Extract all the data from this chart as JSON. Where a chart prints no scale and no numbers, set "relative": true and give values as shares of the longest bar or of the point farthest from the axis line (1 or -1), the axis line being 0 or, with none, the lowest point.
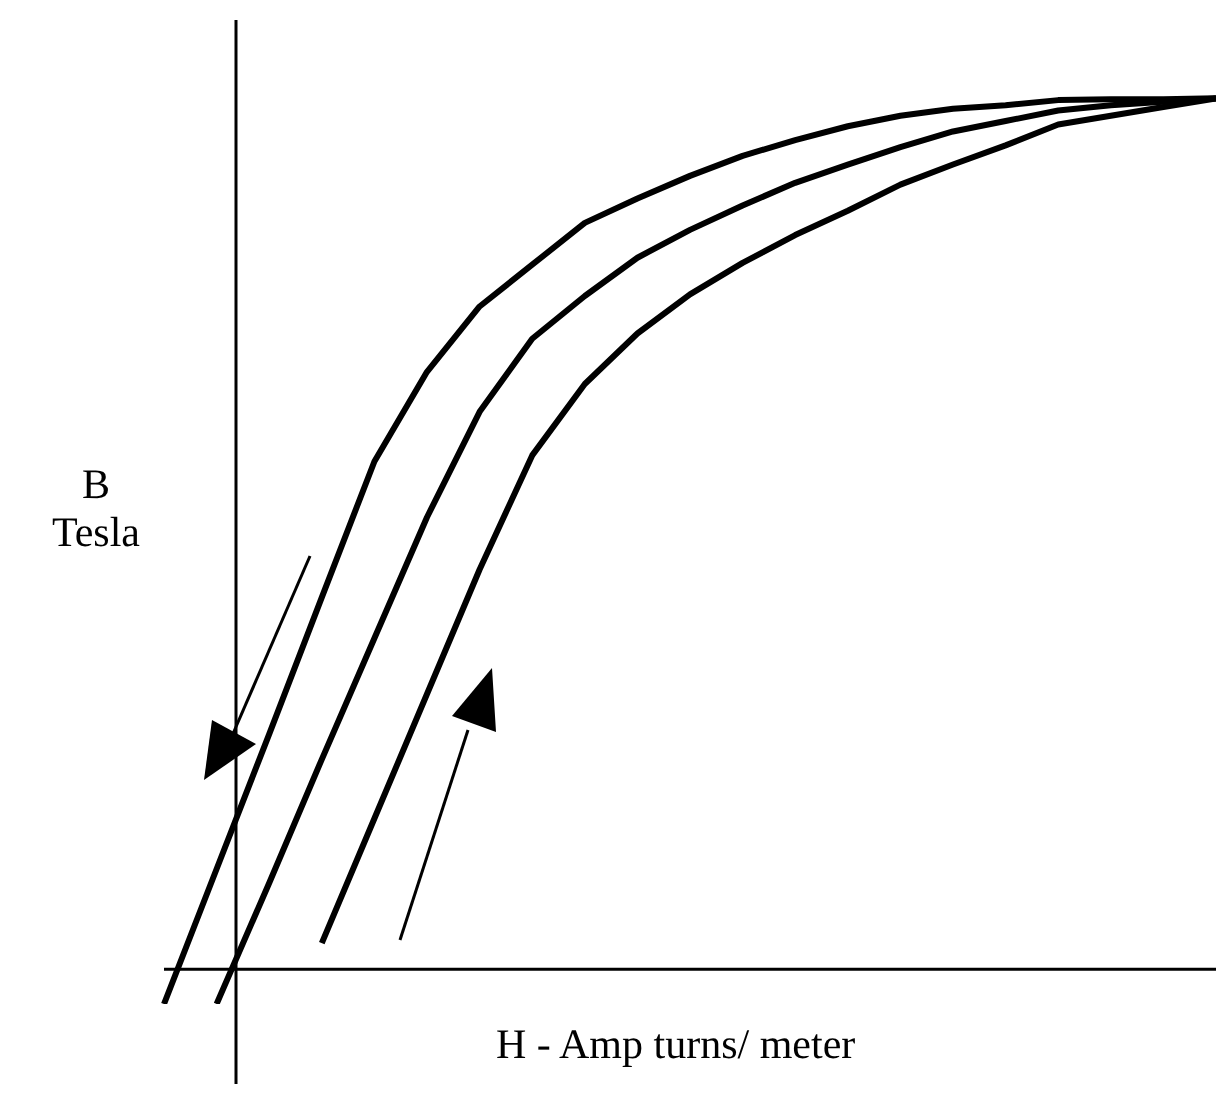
{
  "chart_data": {
    "type": "line",
    "relative": true,
    "xlabel": "H - Amp turns/ meter",
    "ylabel": "B\nTesla",
    "marker": "none",
    "categories": [
      null,
      null,
      null,
      null,
      null,
      null,
      null,
      null,
      null,
      null,
      null,
      null,
      null,
      null,
      null,
      null,
      null,
      null,
      null,
      null,
      null
    ],
    "series": [
      {
        "color": "#000000",
        "values": [
          -0.04,
          0.115,
          0.27,
          0.427,
          0.583,
          0.686,
          0.761,
          0.809,
          0.857,
          0.885,
          0.911,
          0.934,
          0.952,
          0.968,
          0.98,
          0.988,
          0.992,
          0.998,
          0.999,
          0.999,
          1.0
        ]
      },
      {
        "color": "#000000",
        "values": [
          null,
          -0.04,
          0.099,
          0.241,
          0.38,
          0.519,
          0.64,
          0.724,
          0.773,
          0.817,
          0.849,
          0.877,
          0.903,
          0.924,
          0.944,
          0.962,
          0.974,
          0.986,
          0.992,
          0.996,
          1.0
        ]
      },
      {
        "color": "#000000",
        "values": [
          null,
          null,
          null,
          0.03,
          0.173,
          0.316,
          0.459,
          0.59,
          0.672,
          0.73,
          0.775,
          0.811,
          0.843,
          0.871,
          0.901,
          0.924,
          0.946,
          0.97,
          0.98,
          0.99,
          1.0
        ]
      }
    ]
  }
}
